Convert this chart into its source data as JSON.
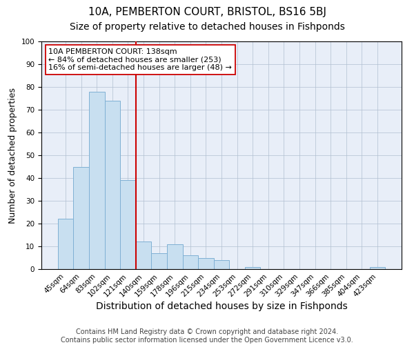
{
  "title": "10A, PEMBERTON COURT, BRISTOL, BS16 5BJ",
  "subtitle": "Size of property relative to detached houses in Fishponds",
  "xlabel": "Distribution of detached houses by size in Fishponds",
  "ylabel": "Number of detached properties",
  "bar_labels": [
    "45sqm",
    "64sqm",
    "83sqm",
    "102sqm",
    "121sqm",
    "140sqm",
    "159sqm",
    "178sqm",
    "196sqm",
    "215sqm",
    "234sqm",
    "253sqm",
    "272sqm",
    "291sqm",
    "310sqm",
    "329sqm",
    "347sqm",
    "366sqm",
    "385sqm",
    "404sqm",
    "423sqm"
  ],
  "bar_values": [
    22,
    45,
    78,
    74,
    39,
    12,
    7,
    11,
    6,
    5,
    4,
    0,
    1,
    0,
    0,
    0,
    0,
    0,
    0,
    0,
    1
  ],
  "bar_color": "#c8dff0",
  "bar_edge_color": "#7fb0d4",
  "vline_index": 5,
  "vline_color": "#cc0000",
  "annotation_title": "10A PEMBERTON COURT: 138sqm",
  "annotation_line1": "← 84% of detached houses are smaller (253)",
  "annotation_line2": "16% of semi-detached houses are larger (48) →",
  "annotation_box_color": "#ffffff",
  "annotation_box_edge": "#cc0000",
  "ylim": [
    0,
    100
  ],
  "ax_facecolor": "#e8eef8",
  "footnote1": "Contains HM Land Registry data © Crown copyright and database right 2024.",
  "footnote2": "Contains public sector information licensed under the Open Government Licence v3.0.",
  "title_fontsize": 11,
  "subtitle_fontsize": 10,
  "xlabel_fontsize": 10,
  "ylabel_fontsize": 9,
  "tick_fontsize": 7.5,
  "annotation_fontsize": 8,
  "footnote_fontsize": 7
}
